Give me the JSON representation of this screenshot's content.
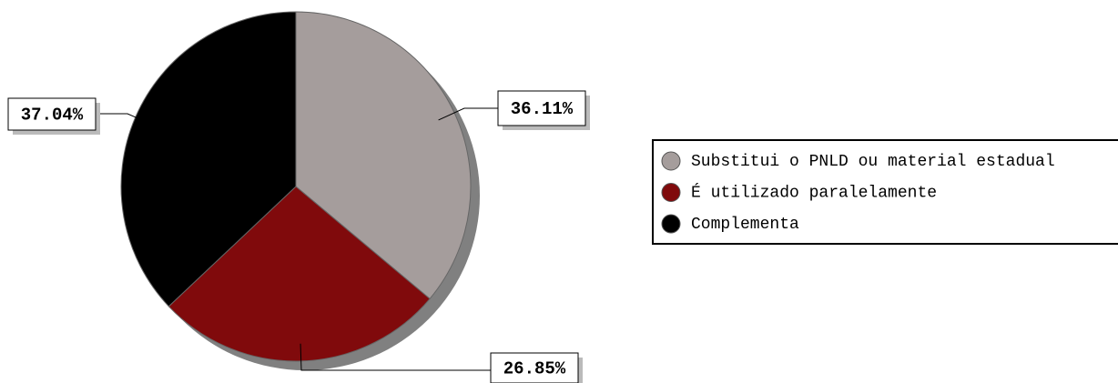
{
  "chart_data": {
    "type": "pie",
    "categories": [
      "Substitui o PNLD ou material estadual",
      "É utilizado paralelamente",
      "Complementa"
    ],
    "values": [
      36.11,
      26.85,
      37.04
    ],
    "value_labels": [
      "36.11%",
      "26.85%",
      "37.04%"
    ],
    "colors": [
      "#a59d9c",
      "#800a0c",
      "#000000"
    ]
  }
}
